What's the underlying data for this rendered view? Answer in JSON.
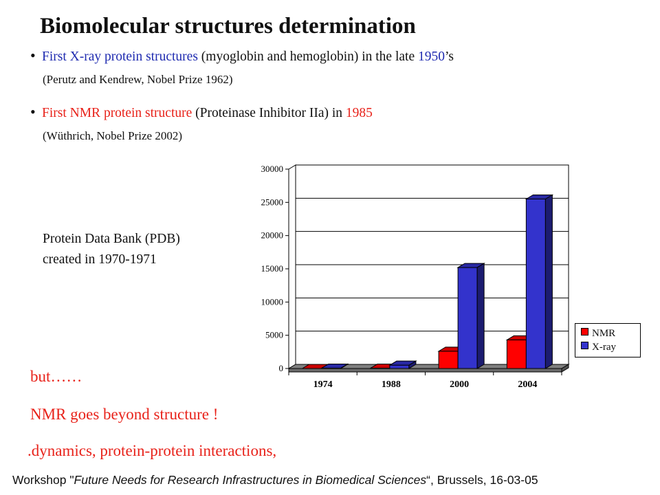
{
  "title": "Biomolecular structures determination",
  "bullets": [
    {
      "highlight": "First X-ray protein structures",
      "text1": " (myoglobin and hemoglobin) in the late ",
      "year": "1950",
      "suffix": "’s",
      "sub": "(Perutz and Kendrew, Nobel Prize 1962)",
      "color": "#1f2bb0"
    },
    {
      "highlight": "First NMR protein structure",
      "text1": " (Proteinase Inhibitor IIa) in ",
      "year": "1985",
      "suffix": "",
      "sub": "(Wüthrich, Nobel Prize 2002)",
      "color": "#e8221a"
    }
  ],
  "pdb_note": {
    "line1": "Protein Data Bank (PDB)",
    "line2": "created in 1970-1971"
  },
  "closing": {
    "line1": "but……",
    "line2": "NMR goes beyond structure !",
    "line3": ".dynamics,  protein-protein interactions,"
  },
  "footer": {
    "prefix": "Workshop \"",
    "italic": "Future Needs for Research Infrastructures in Biomedical Sciences",
    "suffix": "“, Brussels, 16-03-05"
  },
  "chart_data": {
    "type": "bar",
    "categories": [
      "1974",
      "1988",
      "2000",
      "2004"
    ],
    "series": [
      {
        "name": "NMR",
        "values": [
          0,
          50,
          2600,
          4300
        ],
        "color": "#ff0000"
      },
      {
        "name": "X-ray",
        "values": [
          50,
          500,
          15200,
          25500
        ],
        "color": "#3333cc"
      }
    ],
    "ylim": [
      0,
      30000
    ],
    "yticks": [
      "0",
      "5000",
      "10000",
      "15000",
      "20000",
      "25000",
      "30000"
    ],
    "grid": true,
    "legend_position": "right",
    "three_d": true
  }
}
